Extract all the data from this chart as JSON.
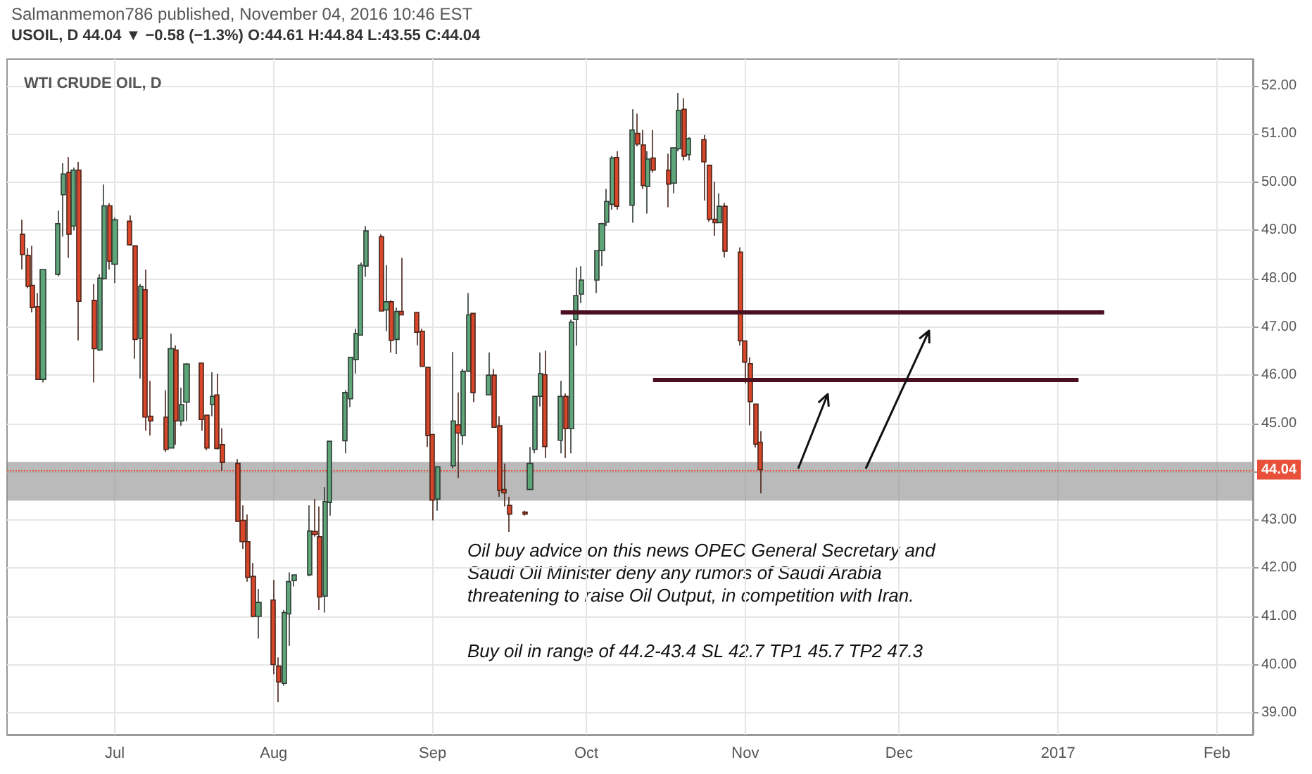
{
  "chart_data": {
    "type": "candlestick",
    "title": "WTI CRUDE OIL, D",
    "subtitle": "USOIL, D 44.04 ▼ −0.58 (−1.3%) O:44.61 H:44.84 L:43.55 C:44.04",
    "x": [
      "2016-06-13",
      "2016-06-14",
      "2016-06-15",
      "2016-06-16",
      "2016-06-17",
      "2016-06-20",
      "2016-06-21",
      "2016-06-22",
      "2016-06-23",
      "2016-06-24",
      "2016-06-27",
      "2016-06-28",
      "2016-06-29",
      "2016-06-30",
      "2016-07-01",
      "2016-07-04",
      "2016-07-05",
      "2016-07-06",
      "2016-07-07",
      "2016-07-08",
      "2016-07-11",
      "2016-07-12",
      "2016-07-13",
      "2016-07-14",
      "2016-07-15",
      "2016-07-18",
      "2016-07-19",
      "2016-07-20",
      "2016-07-21",
      "2016-07-22",
      "2016-07-25",
      "2016-07-26",
      "2016-07-27",
      "2016-07-28",
      "2016-07-29",
      "2016-08-01",
      "2016-08-02",
      "2016-08-03",
      "2016-08-04",
      "2016-08-05",
      "2016-08-08",
      "2016-08-09",
      "2016-08-10",
      "2016-08-11",
      "2016-08-12",
      "2016-08-15",
      "2016-08-16",
      "2016-08-17",
      "2016-08-18",
      "2016-08-19",
      "2016-08-22",
      "2016-08-23",
      "2016-08-24",
      "2016-08-25",
      "2016-08-26",
      "2016-08-29",
      "2016-08-30",
      "2016-08-31",
      "2016-09-01",
      "2016-09-02",
      "2016-09-05",
      "2016-09-06",
      "2016-09-07",
      "2016-09-08",
      "2016-09-09",
      "2016-09-12",
      "2016-09-13",
      "2016-09-14",
      "2016-09-15",
      "2016-09-16",
      "2016-09-19",
      "2016-09-20",
      "2016-09-21",
      "2016-09-22",
      "2016-09-23",
      "2016-09-26",
      "2016-09-27",
      "2016-09-28",
      "2016-09-29",
      "2016-09-30",
      "2016-10-03",
      "2016-10-04",
      "2016-10-05",
      "2016-10-06",
      "2016-10-07",
      "2016-10-10",
      "2016-10-11",
      "2016-10-12",
      "2016-10-13",
      "2016-10-14",
      "2016-10-17",
      "2016-10-18",
      "2016-10-19",
      "2016-10-20",
      "2016-10-21",
      "2016-10-24",
      "2016-10-25",
      "2016-10-26",
      "2016-10-27",
      "2016-10-28",
      "2016-10-31",
      "2016-11-01",
      "2016-11-02",
      "2016-11-03",
      "2016-11-04"
    ],
    "ohlc": [
      [
        48.92,
        49.22,
        48.19,
        48.5
      ],
      [
        48.48,
        48.63,
        47.8,
        47.84
      ],
      [
        47.86,
        48.68,
        47.3,
        47.4
      ],
      [
        47.42,
        47.7,
        45.91,
        45.91
      ],
      [
        45.91,
        48.19,
        45.85,
        48.19
      ],
      [
        48.09,
        49.41,
        48.05,
        49.14
      ],
      [
        49.74,
        50.39,
        48.87,
        50.17
      ],
      [
        50.2,
        50.52,
        48.43,
        48.92
      ],
      [
        49.09,
        50.3,
        49.0,
        50.25
      ],
      [
        50.25,
        50.42,
        46.72,
        47.53
      ],
      [
        47.55,
        47.89,
        45.85,
        46.55
      ],
      [
        46.52,
        48.09,
        46.5,
        48.01
      ],
      [
        48.0,
        49.95,
        47.98,
        49.51
      ],
      [
        49.51,
        49.56,
        48.19,
        48.36
      ],
      [
        48.3,
        49.27,
        47.91,
        49.22
      ],
      [
        49.19,
        49.31,
        48.68,
        48.7
      ],
      [
        48.68,
        48.68,
        46.34,
        46.74
      ],
      [
        46.76,
        47.89,
        45.93,
        47.84
      ],
      [
        47.77,
        48.19,
        44.85,
        45.13
      ],
      [
        45.15,
        45.88,
        44.75,
        45.05
      ],
      [
        45.13,
        45.69,
        44.41,
        44.46
      ],
      [
        44.49,
        46.86,
        44.49,
        46.55
      ],
      [
        46.52,
        46.62,
        44.56,
        45.05
      ],
      [
        45.05,
        45.74,
        44.95,
        45.39
      ],
      [
        45.44,
        46.25,
        45.05,
        46.23
      ],
      [
        46.25,
        46.25,
        44.85,
        45.08
      ],
      [
        45.17,
        45.17,
        44.44,
        44.49
      ],
      [
        45.39,
        46.06,
        45.15,
        45.56
      ],
      [
        45.59,
        46.03,
        44.46,
        44.48
      ],
      [
        44.56,
        44.9,
        44.02,
        44.19
      ],
      [
        44.17,
        44.26,
        42.97,
        42.97
      ],
      [
        42.99,
        43.3,
        42.4,
        42.55
      ],
      [
        42.55,
        43.11,
        41.72,
        41.81
      ],
      [
        41.83,
        42.11,
        40.98,
        41.0
      ],
      [
        41.0,
        41.57,
        40.54,
        41.29
      ],
      [
        41.34,
        41.76,
        39.8,
        40.0
      ],
      [
        39.97,
        40.15,
        39.22,
        39.64
      ],
      [
        39.61,
        41.13,
        39.56,
        41.08
      ],
      [
        41.05,
        41.91,
        40.39,
        41.72
      ],
      [
        41.74,
        41.86,
        41.62,
        41.86
      ],
      [
        41.86,
        43.3,
        41.83,
        42.77
      ],
      [
        42.76,
        43.43,
        42.65,
        42.7
      ],
      [
        42.65,
        43.28,
        41.13,
        41.4
      ],
      [
        41.42,
        43.68,
        41.08,
        43.38
      ],
      [
        43.36,
        44.63,
        43.09,
        44.63
      ],
      [
        44.64,
        45.69,
        44.38,
        45.64
      ],
      [
        45.51,
        46.37,
        45.34,
        46.37
      ],
      [
        46.32,
        46.96,
        46.03,
        46.86
      ],
      [
        46.83,
        48.33,
        46.83,
        48.28
      ],
      [
        48.26,
        49.09,
        48.04,
        48.99
      ],
      [
        48.87,
        48.92,
        47.33,
        47.33
      ],
      [
        47.35,
        48.28,
        46.91,
        47.52
      ],
      [
        47.52,
        47.55,
        46.47,
        46.72
      ],
      [
        46.74,
        47.4,
        46.44,
        47.32
      ],
      [
        47.32,
        48.43,
        47.25,
        47.25
      ],
      [
        47.3,
        47.3,
        46.62,
        46.89
      ],
      [
        46.91,
        46.96,
        46.18,
        46.18
      ],
      [
        46.16,
        46.16,
        44.51,
        44.75
      ],
      [
        44.77,
        44.77,
        42.99,
        43.41
      ],
      [
        43.43,
        44.12,
        43.19,
        44.1
      ],
      [
        44.12,
        46.48,
        44.07,
        45.05
      ],
      [
        44.97,
        45.64,
        43.87,
        44.8
      ],
      [
        44.75,
        46.13,
        44.56,
        46.08
      ],
      [
        46.08,
        47.7,
        46.08,
        47.25
      ],
      [
        47.28,
        47.28,
        45.44,
        45.64
      ],
      [
        45.59,
        46.47,
        45.59,
        46.0
      ],
      [
        46.0,
        46.13,
        44.92,
        44.92
      ],
      [
        44.95,
        45.15,
        43.48,
        43.61
      ],
      [
        43.63,
        44.17,
        43.28,
        43.56
      ],
      [
        43.3,
        43.48,
        42.75,
        43.12
      ],
      [
        43.16,
        43.19,
        43.09,
        43.12
      ],
      [
        43.63,
        44.51,
        43.63,
        44.17
      ],
      [
        44.46,
        45.56,
        44.38,
        45.56
      ],
      [
        45.56,
        46.47,
        45.35,
        46.03
      ],
      [
        46.01,
        46.51,
        44.28,
        44.52
      ],
      [
        44.65,
        45.88,
        44.38,
        45.56
      ],
      [
        45.56,
        45.62,
        44.28,
        44.89
      ],
      [
        44.89,
        47.15,
        44.38,
        47.1
      ],
      [
        47.15,
        48.23,
        46.61,
        47.65
      ],
      [
        47.68,
        48.26,
        47.49,
        47.97
      ],
      [
        47.97,
        48.58,
        47.7,
        48.58
      ],
      [
        48.58,
        49.16,
        48.26,
        49.14
      ],
      [
        49.17,
        49.86,
        49.09,
        49.6
      ],
      [
        49.54,
        50.54,
        49.43,
        50.5
      ],
      [
        50.51,
        50.64,
        49.43,
        49.5
      ],
      [
        49.52,
        51.51,
        49.16,
        51.08
      ],
      [
        51.01,
        51.42,
        50.74,
        50.79
      ],
      [
        50.77,
        51.08,
        49.86,
        49.93
      ],
      [
        49.91,
        50.64,
        49.35,
        50.48
      ],
      [
        50.5,
        51.08,
        50.2,
        50.25
      ],
      [
        50.25,
        50.59,
        49.48,
        49.96
      ],
      [
        49.98,
        50.71,
        49.77,
        50.71
      ],
      [
        50.69,
        51.85,
        50.64,
        51.49
      ],
      [
        51.51,
        51.74,
        50.45,
        50.54
      ],
      [
        50.57,
        50.93,
        50.45,
        50.9
      ],
      [
        50.88,
        50.98,
        49.62,
        50.42
      ],
      [
        50.35,
        50.35,
        49.18,
        49.23
      ],
      [
        49.23,
        50.01,
        48.89,
        49.16
      ],
      [
        49.16,
        49.77,
        49.16,
        49.5
      ],
      [
        49.5,
        49.57,
        48.44,
        48.57
      ],
      [
        48.55,
        48.65,
        46.61,
        46.71
      ],
      [
        46.71,
        46.71,
        45.83,
        46.27
      ],
      [
        46.24,
        46.37,
        44.96,
        45.45
      ],
      [
        45.4,
        45.4,
        44.5,
        44.57
      ],
      [
        44.61,
        44.84,
        43.55,
        44.04
      ]
    ],
    "series": [
      {
        "type": "line",
        "x": [
          "2016-09-26",
          "2017-01-10"
        ],
        "values": [
          47.3,
          47.3
        ],
        "color": "#4a1020"
      },
      {
        "type": "line",
        "x": [
          "2016-10-14",
          "2017-01-05"
        ],
        "values": [
          45.9,
          45.9
        ],
        "color": "#4a1020"
      }
    ],
    "bands": [
      {
        "axis": "y",
        "from": 43.4,
        "to": 44.2,
        "color": "#8c8c8c"
      }
    ],
    "ref_lines": [
      {
        "axis": "y",
        "value": 44.04,
        "label": "44.04",
        "color": "#e8503a",
        "line_style": "dotted"
      }
    ],
    "annotations": [
      "Salmanmemon786 published, November 04, 2016 10:46 EST",
      "Oil buy advice on this news OPEC General Secretary and\nSaudi Oil Minister deny any rumors of Saudi Arabia\nthreatening to raise Oil Output, in competition with Iran.",
      "Buy oil in range of 44.2-43.4 SL 42.7 TP1 45.7 TP2 47.3"
    ],
    "xlim": [
      "2016-06-10",
      "2017-02-08"
    ],
    "xticks": [
      {
        "value": "2016-07-01",
        "label": "Jul"
      },
      {
        "value": "2016-08-01",
        "label": "Aug"
      },
      {
        "value": "2016-09-01",
        "label": "Sep"
      },
      {
        "value": "2016-10-01",
        "label": "Oct"
      },
      {
        "value": "2016-11-01",
        "label": "Nov"
      },
      {
        "value": "2016-12-01",
        "label": "Dec"
      },
      {
        "value": "2017-01-01",
        "label": "2017"
      },
      {
        "value": "2017-02-01",
        "label": "Feb"
      }
    ],
    "ylim": [
      38.55,
      52.55
    ],
    "yticks": [
      {
        "value": 39,
        "label": "39.00"
      },
      {
        "value": 40,
        "label": "40.00"
      },
      {
        "value": 41,
        "label": "41.00"
      },
      {
        "value": 42,
        "label": "42.00"
      },
      {
        "value": 43,
        "label": "43.00"
      },
      {
        "value": 44,
        "label": null
      },
      {
        "value": 45,
        "label": "45.00"
      },
      {
        "value": 46,
        "label": "46.00"
      },
      {
        "value": 47,
        "label": "47.00"
      },
      {
        "value": 48,
        "label": "48.00"
      },
      {
        "value": 49,
        "label": "49.00"
      },
      {
        "value": 50,
        "label": "50.00"
      },
      {
        "value": 51,
        "label": "51.00"
      },
      {
        "value": 52,
        "label": "52.00"
      }
    ],
    "grid": true
  }
}
